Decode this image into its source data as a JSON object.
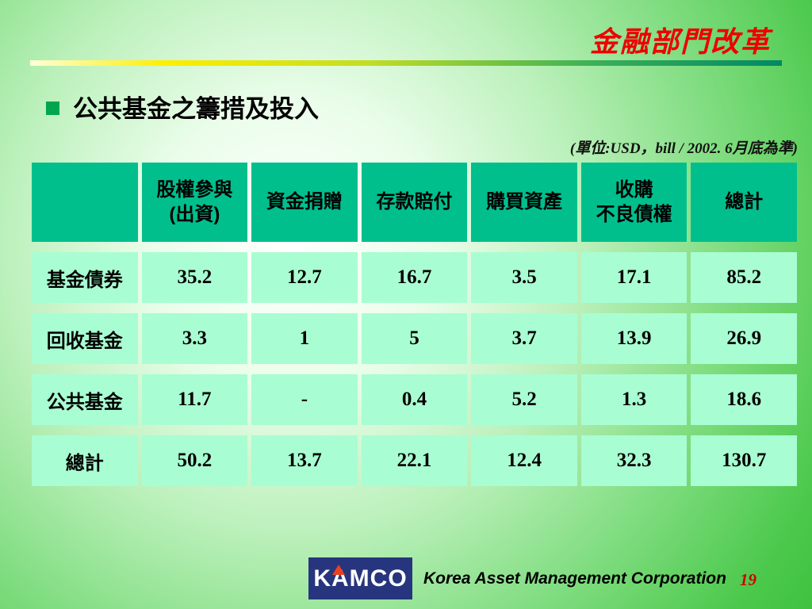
{
  "slide": {
    "title": "金融部門改革",
    "bullet": "公共基金之籌措及投入",
    "units_note": "(單位:USD，bill / 2002. 6月底為準)"
  },
  "table": {
    "headers": [
      "",
      "股權參與\n(出資)",
      "資金捐贈",
      "存款賠付",
      "購買資產",
      "收購\n不良債權",
      "總計"
    ],
    "rows": [
      {
        "label": "基金債券",
        "values": [
          "35.2",
          "12.7",
          "16.7",
          "3.5",
          "17.1",
          "85.2"
        ]
      },
      {
        "label": "回收基金",
        "values": [
          "3.3",
          "1",
          "5",
          "3.7",
          "13.9",
          "26.9"
        ]
      },
      {
        "label": "公共基金",
        "values": [
          "11.7",
          "-",
          "0.4",
          "5.2",
          "1.3",
          "18.6"
        ]
      },
      {
        "label": "總計",
        "values": [
          "50.2",
          "13.7",
          "22.1",
          "12.4",
          "32.3",
          "130.7"
        ]
      }
    ]
  },
  "footer": {
    "logo_text": "KAMCO",
    "company_name": "Korea Asset Management Corporation",
    "page_number": "19"
  },
  "colors": {
    "title_red": "#ee0000",
    "header_cell_green": "#00bf8d",
    "data_cell_mint": "#a9fdd2",
    "bullet_green": "#00a64f",
    "rule_gradient_start_yellow": "#ffee00",
    "rule_gradient_end_teal": "#008866",
    "logo_navy": "#27357e",
    "logo_triangle_red": "#e8421f",
    "page_number_red": "#cc0000"
  }
}
